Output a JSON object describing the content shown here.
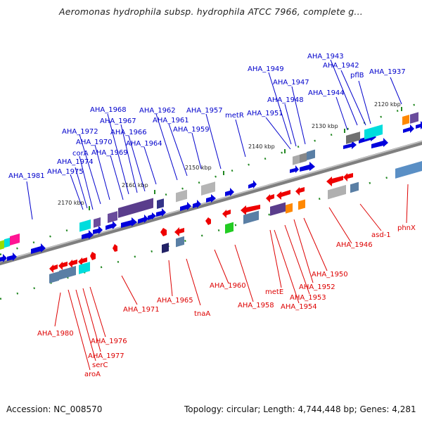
{
  "title": "Aeromonas hydrophila subsp. hydrophila ATCC 7966, complete g...",
  "footer": {
    "accession": "Accession: NC_008570",
    "topology": "Topology: circular; Length: 4,744,448 bp; Genes: 4,281"
  },
  "colors": {
    "forward": "#0000dd",
    "reverse": "#ee0000",
    "label_forward": "#0000cc",
    "label_reverse": "#dd0000",
    "tick_green": "#228822",
    "backbone": "#808080"
  },
  "ticks": [
    "2120 kbp",
    "2130 kbp",
    "2140 kbp",
    "2150 kbp",
    "2160 kbp",
    "2170 kbp"
  ],
  "genes_forward": [
    "AHA_1937",
    "AHA_1942",
    "AHA_1943",
    "pflB",
    "AHA_1944",
    "AHA_1947",
    "AHA_1948",
    "AHA_1949",
    "AHA_1951",
    "metR",
    "AHA_1957",
    "AHA_1959",
    "AHA_1961",
    "AHA_1962",
    "AHA_1964",
    "AHA_1966",
    "AHA_1967",
    "AHA_1968",
    "AHA_1969",
    "AHA_1970",
    "AHA_1972",
    "corA",
    "AHA_1974",
    "AHA_1975",
    "AHA_1981"
  ],
  "genes_reverse": [
    "phnX",
    "asd-1",
    "AHA_1946",
    "AHA_1950",
    "AHA_1952",
    "AHA_1953",
    "AHA_1954",
    "metE",
    "AHA_1958",
    "AHA_1960",
    "tnaA",
    "AHA_1965",
    "AHA_1971",
    "AHA_1976",
    "AHA_1977",
    "serC",
    "aroA",
    "AHA_1980"
  ]
}
